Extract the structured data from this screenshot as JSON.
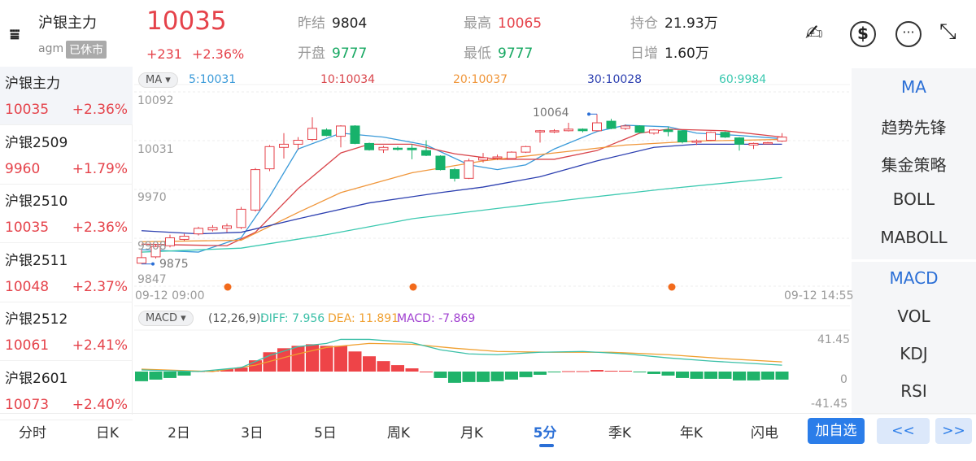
{
  "header": {
    "title": "沪银主力",
    "code": "agm",
    "status_badge": "已休市",
    "price": "10035",
    "change": "+231",
    "change_pct": "+2.36%",
    "stats": [
      {
        "label": "昨结",
        "value": "9804",
        "color": "#222222"
      },
      {
        "label": "开盘",
        "value": "9777",
        "color": "#17a862"
      },
      {
        "label": "最高",
        "value": "10065",
        "color": "#e5424a"
      },
      {
        "label": "最低",
        "value": "9777",
        "color": "#17a862"
      },
      {
        "label": "持仓",
        "value": "21.93万",
        "color": "#222222"
      },
      {
        "label": "日增",
        "value": "1.60万",
        "color": "#222222"
      }
    ],
    "icons": [
      "sign-pen-icon",
      "currency-exchange-icon",
      "more-icon",
      "collapse-icon"
    ]
  },
  "sidebar": {
    "items": [
      {
        "name": "沪银主力",
        "price": "10035",
        "pct": "+2.36%"
      },
      {
        "name": "沪银2509",
        "price": "9960",
        "pct": "+1.79%"
      },
      {
        "name": "沪银2510",
        "price": "10035",
        "pct": "+2.36%"
      },
      {
        "name": "沪银2511",
        "price": "10048",
        "pct": "+2.37%"
      },
      {
        "name": "沪银2512",
        "price": "10061",
        "pct": "+2.41%"
      },
      {
        "name": "沪银2601",
        "price": "10073",
        "pct": "+2.40%"
      }
    ]
  },
  "right_panel": {
    "main": [
      "MA",
      "趋势先锋",
      "集金策略",
      "BOLL",
      "MABOLL"
    ],
    "sub": [
      "MACD",
      "VOL",
      "KDJ",
      "RSI"
    ],
    "active_color": "#2b6fd6"
  },
  "bottom_tabs": [
    "分时",
    "日K",
    "2日",
    "3日",
    "5日",
    "周K",
    "月K",
    "5分",
    "季K",
    "年K",
    "闪电"
  ],
  "active_tab": "5分",
  "add_button": "加自选",
  "prev_button": "<<",
  "next_button": ">>",
  "chart_data": [
    {
      "type": "candlestick",
      "indicator_chip": "MA",
      "legend": [
        {
          "label": "5:10031",
          "color": "#3a9ad9"
        },
        {
          "label": "10:10034",
          "color": "#d9454b"
        },
        {
          "label": "20:10037",
          "color": "#f0963a"
        },
        {
          "label": "30:10028",
          "color": "#2c3fb0"
        },
        {
          "label": "60:9984",
          "color": "#3cc9b0"
        }
      ],
      "y_ticks": [
        "10092",
        "10031",
        "9970",
        "9908",
        "9847"
      ],
      "ylim": [
        9847,
        10092
      ],
      "x_labels": [
        "09-12 09:00",
        "09-12 14:55"
      ],
      "high_label": "10064",
      "low_label": "9875",
      "up_color": "#e5424a",
      "down_color": "#17b26b",
      "candles": [
        [
          9876,
          9893,
          9875,
          9883
        ],
        [
          9884,
          9900,
          9882,
          9897
        ],
        [
          9898,
          9912,
          9896,
          9908
        ],
        [
          9906,
          9913,
          9904,
          9910
        ],
        [
          9913,
          9922,
          9911,
          9920
        ],
        [
          9918,
          9924,
          9916,
          9921
        ],
        [
          9920,
          9926,
          9915,
          9923
        ],
        [
          9921,
          9947,
          9919,
          9944
        ],
        [
          9943,
          9996,
          9941,
          9994
        ],
        [
          9995,
          10025,
          9992,
          10023
        ],
        [
          10022,
          10040,
          10008,
          10026
        ],
        [
          10026,
          10035,
          10019,
          10031
        ],
        [
          10032,
          10060,
          10030,
          10046
        ],
        [
          10044,
          10046,
          10036,
          10037
        ],
        [
          10036,
          10050,
          10022,
          10049
        ],
        [
          10049,
          10050,
          10026,
          10027
        ],
        [
          10027,
          10028,
          10018,
          10019
        ],
        [
          10019,
          10024,
          10015,
          10022
        ],
        [
          10021,
          10023,
          10018,
          10020
        ],
        [
          10021,
          10026,
          10007,
          10019
        ],
        [
          10018,
          10031,
          10011,
          10012
        ],
        [
          10011,
          10012,
          9993,
          9994
        ],
        [
          9994,
          9996,
          9979,
          9983
        ],
        [
          9983,
          10008,
          9982,
          10005
        ],
        [
          10006,
          10015,
          10003,
          10009
        ],
        [
          10009,
          10013,
          10006,
          10010
        ],
        [
          10008,
          10017,
          10007,
          10016
        ],
        [
          10016,
          10024,
          10015,
          10023
        ],
        [
          10042,
          10044,
          10028,
          10043
        ],
        [
          10042,
          10045,
          10040,
          10043
        ],
        [
          10043,
          10053,
          10042,
          10045
        ],
        [
          10045,
          10046,
          10041,
          10043
        ],
        [
          10043,
          10064,
          10042,
          10053
        ],
        [
          10055,
          10058,
          10045,
          10046
        ],
        [
          10046,
          10051,
          10044,
          10049
        ],
        [
          10049,
          10050,
          10040,
          10041
        ],
        [
          10040,
          10045,
          10038,
          10044
        ],
        [
          10044,
          10048,
          10036,
          10042
        ],
        [
          10043,
          10043,
          10027,
          10029
        ],
        [
          10029,
          10032,
          10025,
          10030
        ],
        [
          10031,
          10042,
          10030,
          10041
        ],
        [
          10041,
          10042,
          10034,
          10035
        ],
        [
          10034,
          10035,
          10018,
          10026
        ],
        [
          10025,
          10028,
          10020,
          10027
        ],
        [
          10027,
          10029,
          10026,
          10028
        ],
        [
          10030,
          10040,
          10029,
          10035
        ]
      ],
      "ma": {
        "5": [
          [
            1,
            9893
          ],
          [
            5,
            9890
          ],
          [
            8,
            9908
          ],
          [
            10,
            9960
          ],
          [
            12,
            10020
          ],
          [
            15,
            10040
          ],
          [
            18,
            10035
          ],
          [
            21,
            10025
          ],
          [
            24,
            10000
          ],
          [
            26,
            9994
          ],
          [
            28,
            10000
          ],
          [
            30,
            10020
          ],
          [
            33,
            10042
          ],
          [
            35,
            10050
          ],
          [
            38,
            10048
          ],
          [
            40,
            10040
          ],
          [
            43,
            10037
          ],
          [
            46,
            10033
          ]
        ],
        "10": [
          [
            1,
            9900
          ],
          [
            7,
            9898
          ],
          [
            9,
            9915
          ],
          [
            12,
            9970
          ],
          [
            15,
            10015
          ],
          [
            17,
            10026
          ],
          [
            20,
            10026
          ],
          [
            23,
            10014
          ],
          [
            26,
            10007
          ],
          [
            30,
            10007
          ],
          [
            33,
            10018
          ],
          [
            36,
            10040
          ],
          [
            38,
            10045
          ],
          [
            42,
            10043
          ],
          [
            46,
            10035
          ]
        ],
        "20": [
          [
            1,
            9903
          ],
          [
            8,
            9905
          ],
          [
            12,
            9940
          ],
          [
            15,
            9965
          ],
          [
            20,
            9990
          ],
          [
            25,
            10005
          ],
          [
            30,
            10015
          ],
          [
            35,
            10025
          ],
          [
            40,
            10030
          ],
          [
            46,
            10032
          ]
        ],
        "30": [
          [
            1,
            9917
          ],
          [
            5,
            9913
          ],
          [
            8,
            9915
          ],
          [
            12,
            9932
          ],
          [
            17,
            9952
          ],
          [
            22,
            9965
          ],
          [
            25,
            9972
          ],
          [
            29,
            9985
          ],
          [
            33,
            10005
          ],
          [
            37,
            10022
          ],
          [
            40,
            10026
          ],
          [
            46,
            10026
          ]
        ],
        "60": [
          [
            1,
            9890
          ],
          [
            8,
            9895
          ],
          [
            14,
            9912
          ],
          [
            20,
            9932
          ],
          [
            26,
            9945
          ],
          [
            32,
            9958
          ],
          [
            38,
            9970
          ],
          [
            46,
            9984
          ]
        ]
      },
      "markers_at_bar": [
        10,
        31,
        59
      ]
    },
    {
      "type": "bar",
      "indicator_chip": "MACD",
      "params": "(12,26,9):",
      "legend": [
        {
          "label": "DIFF: 7.956",
          "color": "#3cc0a8"
        },
        {
          "label": "DEA: 11.891",
          "color": "#f0a030"
        },
        {
          "label": "MACD: -7.869",
          "color": "#a040d0"
        }
      ],
      "y_ticks": [
        "41.45",
        "0",
        "-41.45"
      ],
      "ylim": [
        -41.45,
        41.45
      ],
      "histogram": [
        -12,
        -10,
        -8,
        -5,
        0.5,
        1,
        3,
        5,
        14,
        24,
        29,
        32,
        34,
        32,
        32,
        25,
        19,
        13,
        8,
        4,
        0,
        -8,
        -14,
        -13,
        -13,
        -12,
        -10,
        -7,
        -4,
        -1,
        0.5,
        0.5,
        2,
        1,
        1,
        -1,
        -3,
        -5,
        -8,
        -9,
        -9,
        -9,
        -11,
        -11,
        -10,
        -10
      ],
      "diff": [
        [
          1,
          2
        ],
        [
          5,
          0
        ],
        [
          8,
          5
        ],
        [
          10,
          20
        ],
        [
          12,
          31
        ],
        [
          14,
          35
        ],
        [
          15,
          40
        ],
        [
          17,
          40
        ],
        [
          20,
          36
        ],
        [
          22,
          27
        ],
        [
          24,
          22
        ],
        [
          26,
          21
        ],
        [
          29,
          24
        ],
        [
          32,
          25
        ],
        [
          35,
          22
        ],
        [
          38,
          17
        ],
        [
          41,
          13
        ],
        [
          44,
          10
        ],
        [
          46,
          8
        ]
      ],
      "dea": [
        [
          1,
          3
        ],
        [
          6,
          0
        ],
        [
          9,
          8
        ],
        [
          12,
          22
        ],
        [
          14,
          30
        ],
        [
          17,
          35
        ],
        [
          20,
          34
        ],
        [
          23,
          29
        ],
        [
          26,
          25
        ],
        [
          30,
          24
        ],
        [
          34,
          24
        ],
        [
          38,
          21
        ],
        [
          42,
          16
        ],
        [
          46,
          12
        ]
      ]
    }
  ]
}
